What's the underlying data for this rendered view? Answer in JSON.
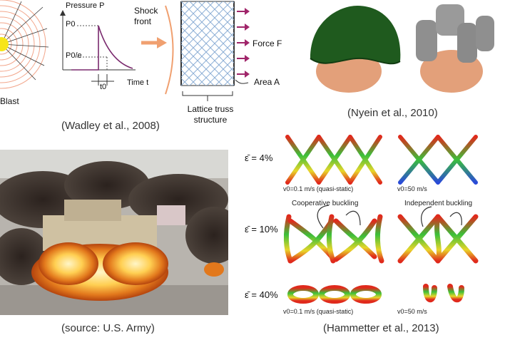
{
  "colors": {
    "blast_core": "#f7e51a",
    "arrow_orange": "#f0a070",
    "force_arrow": "#a0256a",
    "curve_purple": "#7a2a6e",
    "lattice_blue": "#8fb0d6",
    "helmet_green": "#1f5a1e",
    "head_skin": "#e3a07a",
    "helmet_gray": "#8f8f8f"
  },
  "top_left": {
    "blast_label": "Blast",
    "pressure_label": "Pressure P",
    "p0_label": "P0",
    "p0e_label": "P0/e",
    "t0_label": "t0",
    "time_label": "Time t",
    "shock_label": "Shock front",
    "force_label": "Force F",
    "area_label": "Area A",
    "lattice_label": "Lattice truss structure",
    "caption": "(Wadley et al., 2008)"
  },
  "top_right": {
    "caption": "(Nyein et al., 2010)"
  },
  "bottom_left": {
    "caption": "(source: U.S. Army)"
  },
  "bottom_right": {
    "rows": [
      {
        "strain": "ε̄ = 4%"
      },
      {
        "strain": "ε̄ = 10%"
      },
      {
        "strain": "ε̄ = 40%"
      }
    ],
    "v_quasi": "v0=0.1 m/s (quasi-static)",
    "v_fast": "v0=50 m/s",
    "coop_label": "Cooperative buckling",
    "indep_label": "Independent buckling",
    "caption": "(Hammetter et al., 2013)"
  }
}
